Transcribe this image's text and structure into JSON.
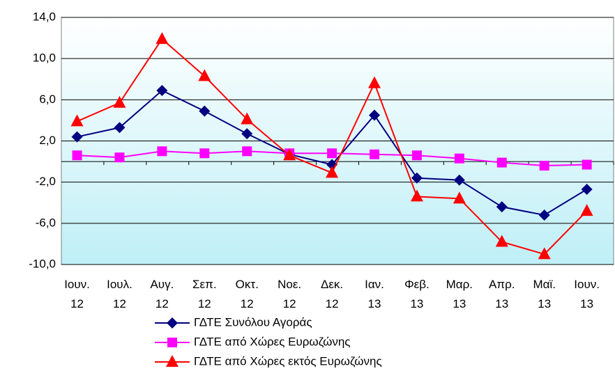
{
  "chart_data": {
    "type": "line",
    "categories": [
      "Ιουν. 12",
      "Ιουλ. 12",
      "Αυγ. 12",
      "Σεπ. 12",
      "Οκτ. 12",
      "Νοε. 12",
      "Δεκ. 12",
      "Ιαν. 13",
      "Φεβ. 13",
      "Μαρ. 13",
      "Απρ. 13",
      "Μαϊ. 13",
      "Ιουν. 13"
    ],
    "series": [
      {
        "name": "ΓΔΤΕ Συνόλου Αγοράς",
        "color": "#000080",
        "marker": "diamond",
        "values": [
          2.4,
          3.3,
          6.9,
          4.9,
          2.7,
          0.7,
          -0.3,
          4.5,
          -1.6,
          -1.8,
          -4.4,
          -5.2,
          -2.7
        ]
      },
      {
        "name": "ΓΔΤΕ από Χώρες Ευρωζώνης",
        "color": "#ff00ff",
        "marker": "square",
        "values": [
          0.6,
          0.4,
          1.0,
          0.8,
          1.0,
          0.8,
          0.8,
          0.7,
          0.6,
          0.3,
          -0.1,
          -0.4,
          -0.3
        ]
      },
      {
        "name": "ΓΔΤΕ από Χώρες εκτός Ευρωζώνης",
        "color": "#ff0000",
        "marker": "triangle",
        "values": [
          3.9,
          5.7,
          11.9,
          8.3,
          4.1,
          0.6,
          -1.1,
          7.6,
          -3.4,
          -3.6,
          -7.8,
          -9.0,
          -4.8
        ]
      }
    ],
    "ylim": [
      -10,
      14
    ],
    "yticks": [
      {
        "value": 14,
        "label": "14,0"
      },
      {
        "value": 10,
        "label": "10,0"
      },
      {
        "value": 6,
        "label": "6,0"
      },
      {
        "value": 2,
        "label": "2,0"
      },
      {
        "value": -2,
        "label": "-2,0"
      },
      {
        "value": -6,
        "label": "-6,0"
      },
      {
        "value": -10,
        "label": "-10,0"
      }
    ],
    "grid": true,
    "legend": "bottom"
  }
}
